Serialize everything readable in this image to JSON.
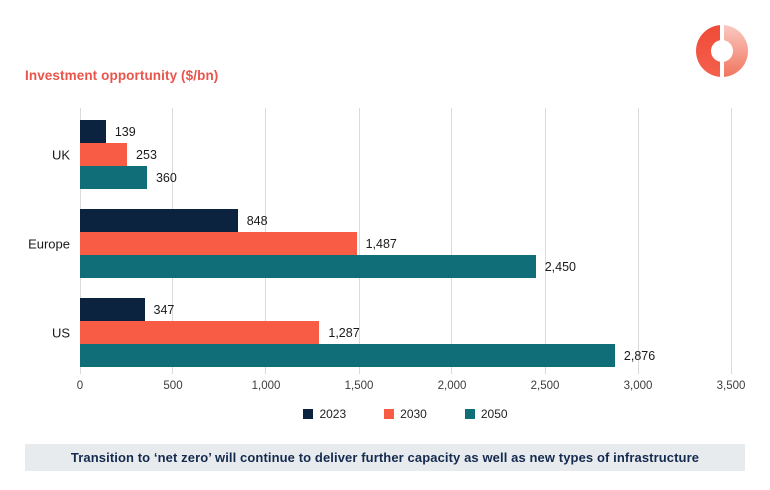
{
  "title": "Investment opportunity ($/bn)",
  "logo": {
    "icon": "donut-chart-logo",
    "primary_color": "#f04a37",
    "secondary_color": "#f59b8b"
  },
  "chart_data": {
    "type": "bar",
    "orientation": "horizontal",
    "title": "Investment opportunity ($/bn)",
    "categories": [
      "UK",
      "Europe",
      "US"
    ],
    "series": [
      {
        "name": "2023",
        "color": "#0c2340",
        "values": [
          139,
          848,
          347
        ]
      },
      {
        "name": "2030",
        "color": "#f85c44",
        "values": [
          253,
          1487,
          1287
        ]
      },
      {
        "name": "2050",
        "color": "#0f6e78",
        "values": [
          360,
          2450,
          2876
        ]
      }
    ],
    "xlim": [
      0,
      3500
    ],
    "x_ticks": [
      0,
      500,
      1000,
      1500,
      2000,
      2500,
      3000,
      3500
    ],
    "grid": "vertical",
    "gridline_color": "#d9dadc",
    "legend_position": "bottom",
    "value_labels": true
  },
  "banner": {
    "text": "Transition to ‘net zero’ will continue to deliver further capacity as well as new types of infrastructure",
    "background": "#e8ebee",
    "text_color": "#142a4e"
  },
  "colors": {
    "title": "#e9544b",
    "navy": "#0c2340",
    "coral": "#f85c44",
    "teal": "#0f6e78"
  }
}
